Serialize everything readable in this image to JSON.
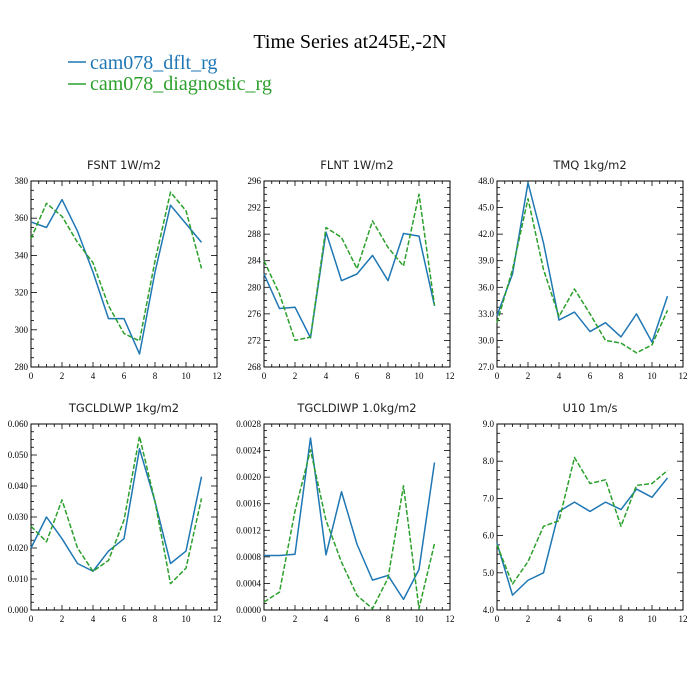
{
  "figure": {
    "title": "Time Series at245E,-2N"
  },
  "colors": {
    "series_1": "#1f77b4",
    "series_2": "#2ca02c"
  },
  "legend": [
    {
      "name": "cam078_dflt_rg",
      "style": "solid",
      "color": "#1f77b4"
    },
    {
      "name": "cam078_diagnostic_rg",
      "style": "dashed",
      "color": "#2ca02c"
    }
  ],
  "chart_data": [
    {
      "type": "line",
      "title": "FSNT",
      "units": "1W/m2",
      "x": [
        0,
        1,
        2,
        3,
        4,
        5,
        6,
        7,
        8,
        9,
        10,
        11
      ],
      "xlim": [
        0,
        12
      ],
      "xticks": [
        0,
        2,
        4,
        6,
        8,
        10,
        12
      ],
      "ylim": [
        280,
        380
      ],
      "yticks": [
        280,
        300,
        320,
        340,
        360,
        380
      ],
      "ytick_labels": [
        "280",
        "300",
        "320",
        "340",
        "360",
        "380"
      ],
      "series": [
        {
          "name": "cam078_dflt_rg",
          "values": [
            358,
            355,
            370,
            353,
            331,
            306,
            306,
            287,
            331,
            367,
            357,
            347
          ]
        },
        {
          "name": "cam078_diagnostic_rg",
          "values": [
            349,
            368,
            361,
            347,
            336,
            313,
            298,
            294,
            337,
            374,
            364,
            333
          ]
        }
      ]
    },
    {
      "type": "line",
      "title": "FLNT",
      "units": "1W/m2",
      "x": [
        0,
        1,
        2,
        3,
        4,
        5,
        6,
        7,
        8,
        9,
        10,
        11
      ],
      "xlim": [
        0,
        12
      ],
      "xticks": [
        0,
        2,
        4,
        6,
        8,
        10,
        12
      ],
      "ylim": [
        268,
        296
      ],
      "yticks": [
        268,
        272,
        276,
        280,
        284,
        288,
        292,
        296
      ],
      "ytick_labels": [
        "268",
        "272",
        "276",
        "280",
        "284",
        "288",
        "292",
        "296"
      ],
      "series": [
        {
          "name": "cam078_dflt_rg",
          "values": [
            282.0,
            276.8,
            277.0,
            272.4,
            288.3,
            281.0,
            282.0,
            284.8,
            281.0,
            288.1,
            287.7,
            277.2
          ]
        },
        {
          "name": "cam078_diagnostic_rg",
          "values": [
            284.0,
            279.0,
            272.0,
            272.5,
            289.0,
            287.5,
            282.8,
            290.0,
            286.0,
            283.2,
            294.0,
            277.3
          ]
        }
      ]
    },
    {
      "type": "line",
      "title": "TMQ",
      "units": "1kg/m2",
      "x": [
        0,
        1,
        2,
        3,
        4,
        5,
        6,
        7,
        8,
        9,
        10,
        11
      ],
      "xlim": [
        0,
        12
      ],
      "xticks": [
        0,
        2,
        4,
        6,
        8,
        10,
        12
      ],
      "ylim": [
        27.0,
        48.0
      ],
      "yticks": [
        27,
        30,
        33,
        36,
        39,
        42,
        45,
        48
      ],
      "ytick_labels": [
        "27.0",
        "30.0",
        "33.0",
        "36.0",
        "39.0",
        "42.0",
        "45.0",
        "48.0"
      ],
      "series": [
        {
          "name": "cam078_dflt_rg",
          "values": [
            32.8,
            37.5,
            47.8,
            41.0,
            32.3,
            33.2,
            31.0,
            32.0,
            30.4,
            33.0,
            29.8,
            35.0
          ]
        },
        {
          "name": "cam078_diagnostic_rg",
          "values": [
            32.0,
            38.0,
            46.0,
            38.0,
            32.7,
            35.8,
            33.0,
            30.0,
            29.7,
            28.6,
            29.5,
            33.4
          ]
        }
      ]
    },
    {
      "type": "line",
      "title": "TGCLDLWP",
      "units": "1kg/m2",
      "x": [
        0,
        1,
        2,
        3,
        4,
        5,
        6,
        7,
        8,
        9,
        10,
        11
      ],
      "xlim": [
        0,
        12
      ],
      "xticks": [
        0,
        2,
        4,
        6,
        8,
        10,
        12
      ],
      "ylim": [
        0,
        0.06
      ],
      "yticks": [
        0,
        0.01,
        0.02,
        0.03,
        0.04,
        0.05,
        0.06
      ],
      "ytick_labels": [
        "0.000",
        "0.010",
        "0.020",
        "0.030",
        "0.040",
        "0.050",
        "0.060"
      ],
      "series": [
        {
          "name": "cam078_dflt_rg",
          "values": [
            0.02,
            0.03,
            0.023,
            0.015,
            0.0125,
            0.019,
            0.023,
            0.052,
            0.035,
            0.015,
            0.019,
            0.043
          ]
        },
        {
          "name": "cam078_diagnostic_rg",
          "values": [
            0.027,
            0.022,
            0.0355,
            0.02,
            0.0125,
            0.016,
            0.029,
            0.056,
            0.035,
            0.0085,
            0.0135,
            0.036
          ]
        }
      ]
    },
    {
      "type": "line",
      "title": "TGCLDIWP",
      "units": "1.0kg/m2",
      "x": [
        0,
        1,
        2,
        3,
        4,
        5,
        6,
        7,
        8,
        9,
        10,
        11
      ],
      "xlim": [
        0,
        12
      ],
      "xticks": [
        0,
        2,
        4,
        6,
        8,
        10,
        12
      ],
      "ylim": [
        0,
        0.0028
      ],
      "yticks": [
        0,
        0.0004,
        0.0008,
        0.0012,
        0.0016,
        0.002,
        0.0024,
        0.0028
      ],
      "ytick_labels": [
        "0.0000",
        "0.0004",
        "0.0008",
        "0.0012",
        "0.0016",
        "0.0020",
        "0.0024",
        "0.0028"
      ],
      "series": [
        {
          "name": "cam078_dflt_rg",
          "values": [
            0.00082,
            0.00082,
            0.00084,
            0.00259,
            0.00083,
            0.00178,
            0.00099,
            0.00045,
            0.00052,
            0.00016,
            0.00061,
            0.00222
          ]
        },
        {
          "name": "cam078_diagnostic_rg",
          "values": [
            0.00012,
            0.00027,
            0.00149,
            0.00241,
            0.00135,
            0.00072,
            0.00022,
            2e-05,
            0.00048,
            0.00187,
            2e-05,
            0.001
          ]
        }
      ]
    },
    {
      "type": "line",
      "title": "U10",
      "units": "1m/s",
      "x": [
        0,
        1,
        2,
        3,
        4,
        5,
        6,
        7,
        8,
        9,
        10,
        11
      ],
      "xlim": [
        0,
        12
      ],
      "xticks": [
        0,
        2,
        4,
        6,
        8,
        10,
        12
      ],
      "ylim": [
        4.0,
        9.0
      ],
      "yticks": [
        4,
        5,
        6,
        7,
        8,
        9
      ],
      "ytick_labels": [
        "4.0",
        "5.0",
        "6.0",
        "7.0",
        "8.0",
        "9.0"
      ],
      "series": [
        {
          "name": "cam078_dflt_rg",
          "values": [
            5.8,
            4.4,
            4.8,
            5.0,
            6.65,
            6.9,
            6.65,
            6.9,
            6.7,
            7.25,
            7.03,
            7.55
          ]
        },
        {
          "name": "cam078_diagnostic_rg",
          "values": [
            5.75,
            4.7,
            5.3,
            6.25,
            6.4,
            8.1,
            7.4,
            7.5,
            6.25,
            7.35,
            7.4,
            7.75
          ]
        }
      ]
    }
  ]
}
